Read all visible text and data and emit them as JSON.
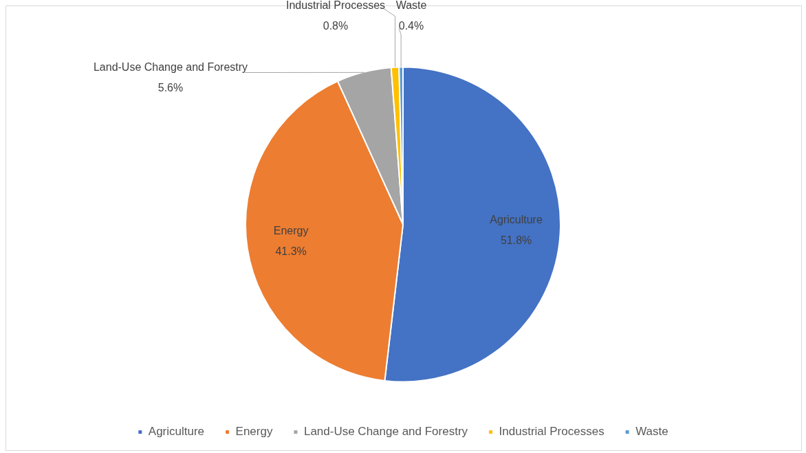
{
  "chart_data": {
    "type": "pie",
    "categories": [
      "Agriculture",
      "Energy",
      "Land-Use Change and Forestry",
      "Industrial Processes",
      "Waste"
    ],
    "values": [
      51.8,
      41.3,
      5.6,
      0.8,
      0.4
    ],
    "colors": [
      "#4472c4",
      "#ed7d31",
      "#a5a5a5",
      "#ffc000",
      "#5b9bd5"
    ],
    "value_labels": [
      "51.8%",
      "41.3%",
      "5.6%",
      "0.8%",
      "0.4%"
    ],
    "legend": "bottom"
  }
}
